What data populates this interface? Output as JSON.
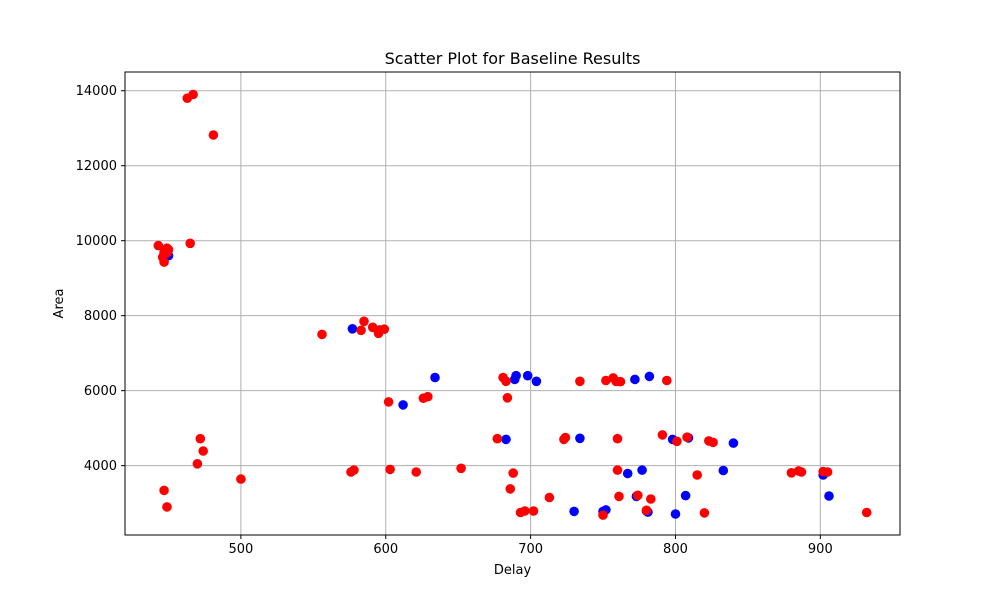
{
  "chart_data": {
    "type": "scatter",
    "title": "Scatter Plot for Baseline Results",
    "xlabel": "Delay",
    "ylabel": "Area",
    "xlim": [
      420,
      955
    ],
    "ylim": [
      2150,
      14500
    ],
    "xticks": [
      500,
      600,
      700,
      800,
      900
    ],
    "yticks": [
      4000,
      6000,
      8000,
      10000,
      12000,
      14000
    ],
    "grid": true,
    "series": [
      {
        "color": "#0000ff",
        "points": [
          [
            450,
            9600
          ],
          [
            577,
            7650
          ],
          [
            612,
            5620
          ],
          [
            634,
            6350
          ],
          [
            683,
            4700
          ],
          [
            689,
            6300
          ],
          [
            690,
            6400
          ],
          [
            698,
            6400
          ],
          [
            704,
            6250
          ],
          [
            730,
            2780
          ],
          [
            734,
            4730
          ],
          [
            750,
            2780
          ],
          [
            752,
            2820
          ],
          [
            767,
            3790
          ],
          [
            772,
            6300
          ],
          [
            773,
            3180
          ],
          [
            777,
            3880
          ],
          [
            780,
            2790
          ],
          [
            781,
            2760
          ],
          [
            782,
            6380
          ],
          [
            798,
            4700
          ],
          [
            800,
            2710
          ],
          [
            807,
            3200
          ],
          [
            809,
            4740
          ],
          [
            833,
            3870
          ],
          [
            840,
            4600
          ],
          [
            902,
            3750
          ],
          [
            906,
            3190
          ]
        ]
      },
      {
        "color": "#ff0000",
        "points": [
          [
            443,
            9870
          ],
          [
            446,
            9560
          ],
          [
            447,
            9430
          ],
          [
            447,
            9680
          ],
          [
            447,
            3340
          ],
          [
            449,
            9800
          ],
          [
            449,
            9680
          ],
          [
            449,
            2900
          ],
          [
            450,
            9760
          ],
          [
            463,
            13800
          ],
          [
            465,
            9930
          ],
          [
            467,
            13900
          ],
          [
            470,
            4050
          ],
          [
            472,
            4720
          ],
          [
            474,
            4390
          ],
          [
            481,
            12820
          ],
          [
            500,
            3640
          ],
          [
            556,
            7500
          ],
          [
            576,
            3830
          ],
          [
            578,
            3880
          ],
          [
            583,
            7610
          ],
          [
            585,
            7850
          ],
          [
            591,
            7690
          ],
          [
            595,
            7530
          ],
          [
            596,
            7620
          ],
          [
            599,
            7640
          ],
          [
            602,
            5700
          ],
          [
            603,
            3900
          ],
          [
            621,
            3830
          ],
          [
            626,
            5800
          ],
          [
            629,
            5840
          ],
          [
            652,
            3930
          ],
          [
            677,
            4720
          ],
          [
            681,
            6350
          ],
          [
            683,
            6250
          ],
          [
            684,
            5810
          ],
          [
            686,
            3380
          ],
          [
            688,
            3800
          ],
          [
            693,
            2750
          ],
          [
            696,
            2790
          ],
          [
            702,
            2790
          ],
          [
            713,
            3150
          ],
          [
            723,
            4700
          ],
          [
            724,
            4750
          ],
          [
            734,
            6250
          ],
          [
            750,
            2680
          ],
          [
            752,
            6270
          ],
          [
            757,
            6340
          ],
          [
            759,
            6250
          ],
          [
            760,
            3880
          ],
          [
            760,
            4720
          ],
          [
            761,
            3180
          ],
          [
            762,
            6240
          ],
          [
            774,
            3210
          ],
          [
            780,
            2810
          ],
          [
            783,
            3110
          ],
          [
            791,
            4820
          ],
          [
            794,
            6270
          ],
          [
            801,
            4650
          ],
          [
            808,
            4760
          ],
          [
            815,
            3750
          ],
          [
            820,
            2740
          ],
          [
            823,
            4660
          ],
          [
            826,
            4620
          ],
          [
            880,
            3810
          ],
          [
            885,
            3860
          ],
          [
            887,
            3830
          ],
          [
            902,
            3840
          ],
          [
            905,
            3830
          ],
          [
            932,
            2750
          ]
        ]
      }
    ]
  }
}
